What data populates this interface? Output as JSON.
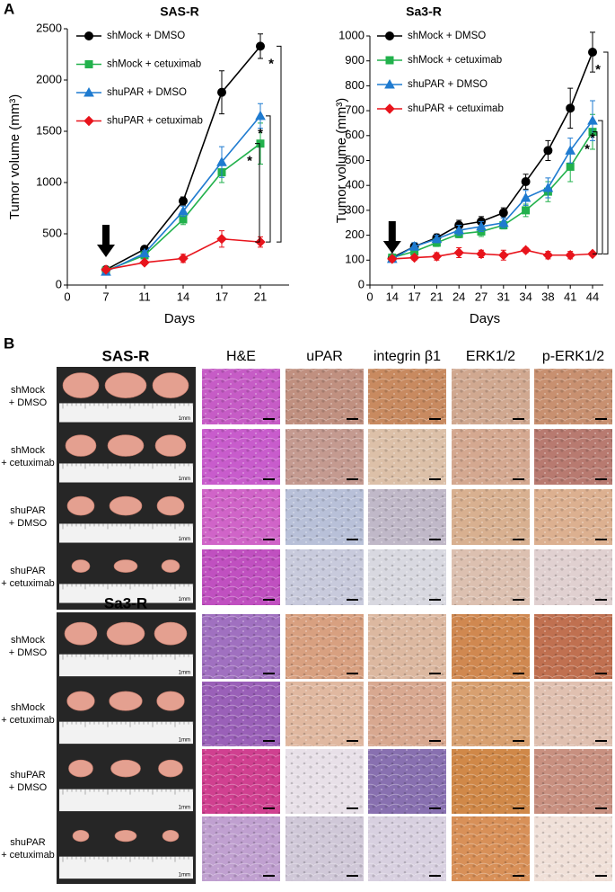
{
  "panel_labels": [
    "A",
    "B"
  ],
  "chart_data": [
    {
      "type": "line",
      "title": "SAS-R",
      "x_label": "Days",
      "y_label": "Tumor volume (mm³)",
      "categories": [
        "0",
        "7",
        "11",
        "14",
        "17",
        "21"
      ],
      "ylim": [
        0,
        2500
      ],
      "yticks": [
        0,
        500,
        1000,
        1500,
        2000,
        2500
      ],
      "series": [
        {
          "name": "shMock + DMSO",
          "color": "#000000",
          "marker": "circle",
          "values": [
            null,
            150,
            350,
            820,
            1880,
            2330
          ],
          "errors": [
            null,
            20,
            30,
            40,
            210,
            120
          ]
        },
        {
          "name": "shMock + cetuximab",
          "color": "#22b14c",
          "marker": "square",
          "values": [
            null,
            140,
            290,
            640,
            1100,
            1380
          ],
          "errors": [
            null,
            15,
            25,
            50,
            100,
            200
          ]
        },
        {
          "name": "shuPAR + DMSO",
          "color": "#1f7bd0",
          "marker": "triangle",
          "values": [
            null,
            130,
            310,
            720,
            1200,
            1650
          ],
          "errors": [
            null,
            15,
            25,
            50,
            150,
            120
          ]
        },
        {
          "name": "shuPAR + cetuximab",
          "color": "#e8141c",
          "marker": "diamond",
          "values": [
            null,
            150,
            220,
            260,
            450,
            420
          ],
          "errors": [
            null,
            10,
            20,
            40,
            80,
            50
          ]
        }
      ],
      "annotations": [
        "*",
        "*",
        "*"
      ]
    },
    {
      "type": "line",
      "title": "Sa3-R",
      "x_label": "Days",
      "y_label": "Tumor volume (mm³)",
      "categories": [
        "0",
        "14",
        "17",
        "21",
        "24",
        "27",
        "31",
        "34",
        "38",
        "41",
        "44"
      ],
      "ylim": [
        0,
        1000
      ],
      "yticks": [
        0,
        100,
        200,
        300,
        400,
        500,
        600,
        700,
        800,
        900,
        1000
      ],
      "series": [
        {
          "name": "shMock + DMSO",
          "color": "#000000",
          "marker": "circle",
          "values": [
            null,
            110,
            155,
            190,
            240,
            255,
            290,
            415,
            540,
            710,
            935
          ],
          "errors": [
            null,
            10,
            15,
            15,
            20,
            20,
            20,
            30,
            40,
            80,
            80
          ]
        },
        {
          "name": "shMock + cetuximab",
          "color": "#22b14c",
          "marker": "square",
          "values": [
            null,
            110,
            135,
            170,
            205,
            215,
            240,
            300,
            375,
            475,
            615
          ],
          "errors": [
            null,
            10,
            15,
            15,
            15,
            20,
            15,
            25,
            40,
            60,
            70
          ]
        },
        {
          "name": "shuPAR + DMSO",
          "color": "#1f7bd0",
          "marker": "triangle",
          "values": [
            null,
            105,
            155,
            185,
            220,
            235,
            250,
            350,
            390,
            540,
            660
          ],
          "errors": [
            null,
            10,
            15,
            15,
            20,
            20,
            20,
            30,
            40,
            50,
            80
          ]
        },
        {
          "name": "shuPAR + cetuximab",
          "color": "#e8141c",
          "marker": "diamond",
          "values": [
            null,
            105,
            110,
            115,
            130,
            125,
            120,
            140,
            120,
            120,
            125
          ],
          "errors": [
            null,
            10,
            10,
            15,
            20,
            15,
            20,
            10,
            15,
            15,
            5
          ]
        }
      ],
      "annotations": [
        "*",
        "*",
        "*"
      ]
    }
  ],
  "panel_b": {
    "stain_columns": [
      "H&E",
      "uPAR",
      "integrin β1",
      "ERK1/2",
      "p-ERK1/2"
    ],
    "sections": [
      {
        "title": "SAS-R",
        "rows": [
          {
            "label": [
              "shMock",
              "+ DMSO"
            ],
            "scale": "1mm"
          },
          {
            "label": [
              "shMock",
              "+ cetuximab"
            ],
            "scale": "1mm"
          },
          {
            "label": [
              "shuPAR",
              "+ DMSO"
            ],
            "scale": "1mm"
          },
          {
            "label": [
              "shuPAR",
              "+ cetuximab"
            ],
            "scale": "1mm"
          }
        ]
      },
      {
        "title": "Sa3-R",
        "rows": [
          {
            "label": [
              "shMock",
              "+ DMSO"
            ],
            "scale": "1mm"
          },
          {
            "label": [
              "shMock",
              "+ cetuximab"
            ],
            "scale": "1mm"
          },
          {
            "label": [
              "shuPAR",
              "+ DMSO"
            ],
            "scale": "1mm"
          },
          {
            "label": [
              "shuPAR",
              "+ cetuximab"
            ],
            "scale": "1mm"
          }
        ]
      }
    ]
  }
}
